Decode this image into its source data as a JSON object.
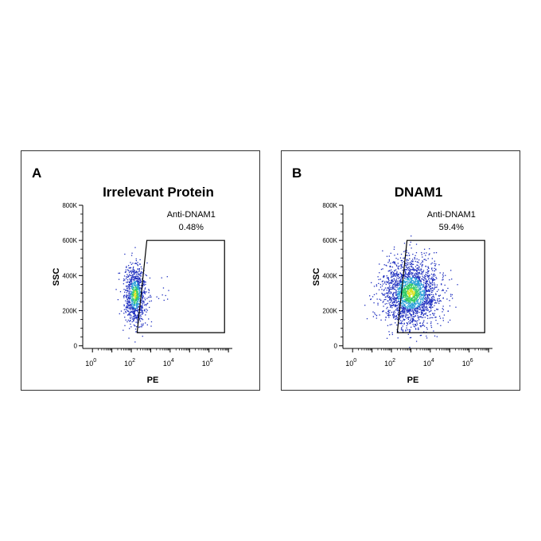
{
  "chart_data": [
    {
      "type": "scatter",
      "panel_letter": "A",
      "title": "Irrelevant Protein",
      "xlabel": "PE",
      "ylabel": "SSC",
      "xscale": "log",
      "x_ticks": [
        {
          "base": "10",
          "exp": "0"
        },
        {
          "base": "10",
          "exp": "2"
        },
        {
          "base": "10",
          "exp": "4"
        },
        {
          "base": "10",
          "exp": "6"
        }
      ],
      "y_ticks": [
        "0",
        "200K",
        "400K",
        "600K",
        "800K"
      ],
      "ylim": [
        0,
        800000
      ],
      "gate": {
        "name": "Anti-DNAM1",
        "value": "0.48%",
        "vertices_data": [
          [
            2.3,
            75000
          ],
          [
            2.8,
            600000
          ],
          [
            6.8,
            600000
          ],
          [
            6.8,
            75000
          ]
        ]
      },
      "population": {
        "center_log10_pe": 2.2,
        "spread_log10_pe": 0.28,
        "center_ssc": 290000,
        "spread_ssc": 85000,
        "density": "dense"
      },
      "grid": false
    },
    {
      "type": "scatter",
      "panel_letter": "B",
      "title": "DNAM1",
      "xlabel": "PE",
      "ylabel": "SSC",
      "xscale": "log",
      "x_ticks": [
        {
          "base": "10",
          "exp": "0"
        },
        {
          "base": "10",
          "exp": "2"
        },
        {
          "base": "10",
          "exp": "4"
        },
        {
          "base": "10",
          "exp": "6"
        }
      ],
      "y_ticks": [
        "0",
        "200K",
        "400K",
        "600K",
        "800K"
      ],
      "ylim": [
        0,
        800000
      ],
      "gate": {
        "name": "Anti-DNAM1",
        "value": "59.4%",
        "vertices_data": [
          [
            2.3,
            75000
          ],
          [
            2.8,
            600000
          ],
          [
            6.8,
            600000
          ],
          [
            6.8,
            75000
          ]
        ]
      },
      "population": {
        "center_log10_pe": 3.0,
        "spread_log10_pe": 0.75,
        "center_ssc": 300000,
        "spread_ssc": 95000,
        "density": "dense"
      },
      "grid": false
    }
  ],
  "colors": {
    "low": "#1f2fbf",
    "mid": "#2aa0d8",
    "high": "#33cc66",
    "peak": "#d8e020"
  }
}
